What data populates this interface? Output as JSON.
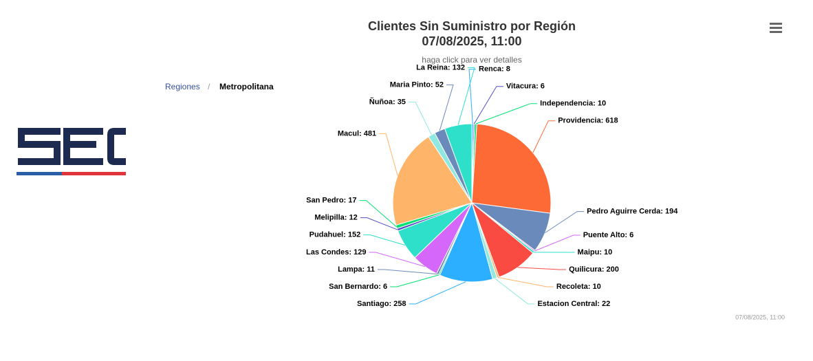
{
  "breadcrumb": {
    "items": [
      "Regiones",
      "Metropolitana"
    ],
    "separator": "/"
  },
  "chart_data": {
    "type": "pie",
    "title": "Clientes Sin Suministro por Región",
    "title_line2": "07/08/2025, 11:00",
    "subtitle": "haga click para ver detalles",
    "credit": "07/08/2025, 11:00",
    "categories": [
      "Renca",
      "Vitacura",
      "Independencia",
      "Providencia",
      "Pedro Aguirre Cerda",
      "Puente Alto",
      "Maipu",
      "Quilicura",
      "Recoleta",
      "Estacion Central",
      "Santiago",
      "San Bernardo",
      "Lampa",
      "Las Condes",
      "Pudahuel",
      "Melipilla",
      "San Pedro",
      "Macul",
      "Ñuñoa",
      "Maria Pinto",
      "La Reina"
    ],
    "values": [
      8,
      6,
      10,
      618,
      194,
      6,
      10,
      200,
      10,
      22,
      258,
      6,
      11,
      129,
      152,
      12,
      17,
      481,
      35,
      52,
      132
    ],
    "value_labels": [
      "Renca: 8",
      "Vitacura: 6",
      "Independencia: 10",
      "Providencia: 618",
      "Pedro Aguirre Cerda: 194",
      "Puente Alto: 6",
      "Maipu: 10",
      "Quilicura: 200",
      "Recoleta: 10",
      "Estacion Central: 22",
      "Santiago: 258",
      "San Bernardo: 6",
      "Lampa: 11",
      "Las Condes: 129",
      "Pudahuel: 152",
      "Melipilla: 12",
      "San Pedro: 17",
      "Macul: 481",
      "Ñuñoa: 35",
      "Maria Pinto: 52",
      "La Reina: 132"
    ],
    "colors": [
      "#2caffe",
      "#544fc5",
      "#00e272",
      "#fe6a35",
      "#6b8abc",
      "#d568fb",
      "#2ee0ca",
      "#fa4b42",
      "#feb56a",
      "#91e8e1",
      "#2caffe",
      "#00e272",
      "#6b8abc",
      "#d568fb",
      "#2ee0ca",
      "#544fc5",
      "#00e272",
      "#feb56a",
      "#91e8e1",
      "#6b8abc",
      "#2ee0ca"
    ]
  }
}
